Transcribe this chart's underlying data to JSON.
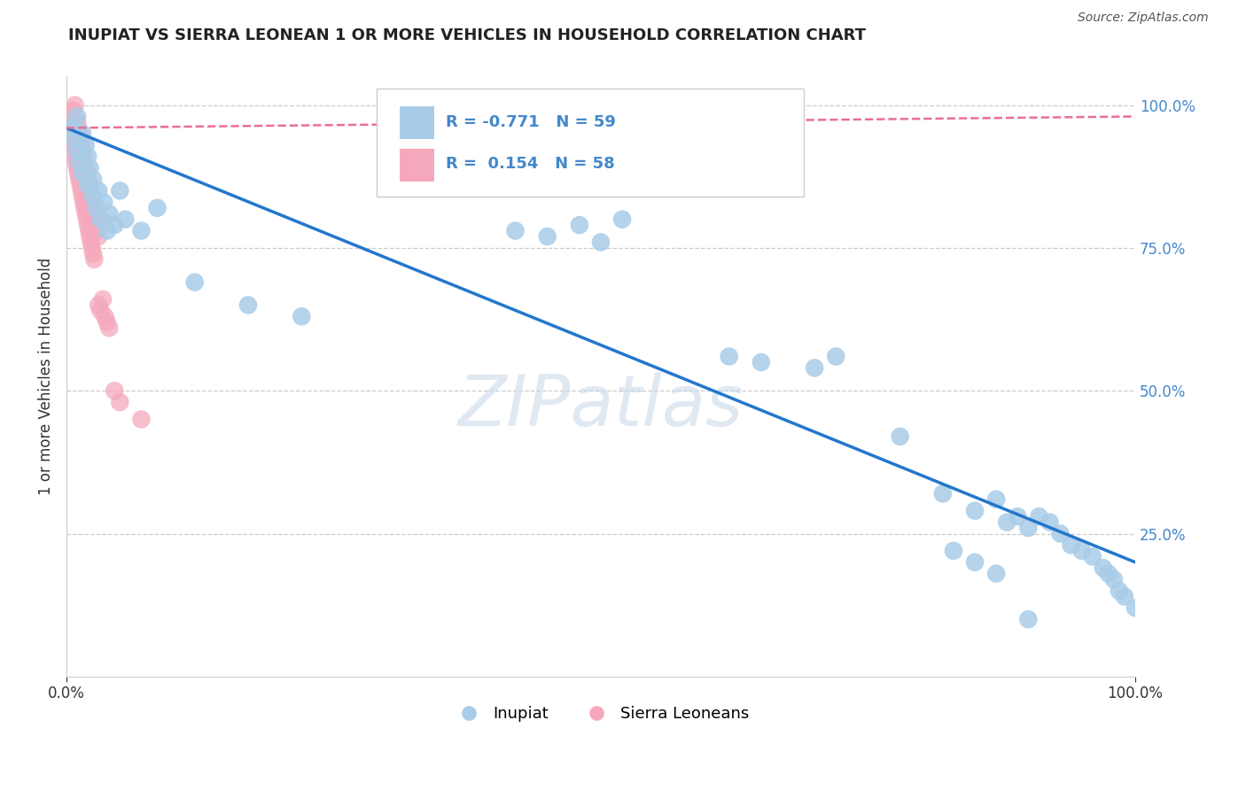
{
  "title": "INUPIAT VS SIERRA LEONEAN 1 OR MORE VEHICLES IN HOUSEHOLD CORRELATION CHART",
  "source": "Source: ZipAtlas.com",
  "ylabel": "1 or more Vehicles in Household",
  "xlabel": "",
  "xlim": [
    0.0,
    1.0
  ],
  "ylim": [
    0.0,
    1.05
  ],
  "inupiat_color": "#a8cce8",
  "sierra_color": "#f5a8bc",
  "line_inupiat_color": "#2277cc",
  "line_sierra_color": "#e87090",
  "R_inupiat": -0.771,
  "N_inupiat": 59,
  "R_sierra": 0.154,
  "N_sierra": 58,
  "background_color": "#ffffff",
  "grid_color": "#cccccc",
  "title_color": "#222222",
  "source_color": "#555555",
  "tick_color": "#4488cc",
  "legend_label_inupiat": "Inupiat",
  "legend_label_sierra": "Sierra Leoneans",
  "inupiat_line_x0": 0.0,
  "inupiat_line_y0": 0.96,
  "inupiat_line_x1": 1.0,
  "inupiat_line_y1": 0.2,
  "sierra_line_x0": 0.0,
  "sierra_line_y0": 0.96,
  "sierra_line_x1": 0.08,
  "sierra_line_y1": 0.98,
  "inupiat_x": [
    0.005,
    0.008,
    0.01,
    0.01,
    0.012,
    0.015,
    0.015,
    0.018,
    0.02,
    0.02,
    0.022,
    0.025,
    0.025,
    0.028,
    0.03,
    0.032,
    0.035,
    0.038,
    0.04,
    0.045,
    0.05,
    0.055,
    0.07,
    0.085,
    0.12,
    0.17,
    0.22,
    0.42,
    0.45,
    0.48,
    0.5,
    0.52,
    0.62,
    0.65,
    0.7,
    0.72,
    0.78,
    0.82,
    0.85,
    0.87,
    0.88,
    0.89,
    0.9,
    0.91,
    0.92,
    0.93,
    0.94,
    0.95,
    0.96,
    0.97,
    0.975,
    0.98,
    0.985,
    0.99,
    1.0,
    0.83,
    0.85,
    0.87,
    0.9
  ],
  "inupiat_y": [
    0.96,
    0.94,
    0.92,
    0.98,
    0.9,
    0.95,
    0.88,
    0.93,
    0.91,
    0.86,
    0.89,
    0.87,
    0.84,
    0.82,
    0.85,
    0.8,
    0.83,
    0.78,
    0.81,
    0.79,
    0.85,
    0.8,
    0.78,
    0.82,
    0.69,
    0.65,
    0.63,
    0.78,
    0.77,
    0.79,
    0.76,
    0.8,
    0.56,
    0.55,
    0.54,
    0.56,
    0.42,
    0.32,
    0.29,
    0.31,
    0.27,
    0.28,
    0.26,
    0.28,
    0.27,
    0.25,
    0.23,
    0.22,
    0.21,
    0.19,
    0.18,
    0.17,
    0.15,
    0.14,
    0.12,
    0.22,
    0.2,
    0.18,
    0.1
  ],
  "sierra_x": [
    0.002,
    0.003,
    0.004,
    0.005,
    0.006,
    0.007,
    0.007,
    0.008,
    0.008,
    0.009,
    0.009,
    0.01,
    0.01,
    0.011,
    0.011,
    0.012,
    0.012,
    0.013,
    0.013,
    0.014,
    0.014,
    0.015,
    0.015,
    0.016,
    0.016,
    0.017,
    0.017,
    0.018,
    0.018,
    0.019,
    0.019,
    0.02,
    0.02,
    0.021,
    0.021,
    0.022,
    0.022,
    0.023,
    0.023,
    0.024,
    0.024,
    0.025,
    0.025,
    0.026,
    0.026,
    0.027,
    0.028,
    0.029,
    0.03,
    0.03,
    0.032,
    0.034,
    0.036,
    0.038,
    0.04,
    0.045,
    0.05,
    0.07
  ],
  "sierra_y": [
    0.98,
    0.97,
    0.96,
    0.95,
    0.99,
    0.94,
    0.93,
    0.92,
    1.0,
    0.91,
    0.9,
    0.97,
    0.89,
    0.96,
    0.88,
    0.95,
    0.87,
    0.94,
    0.86,
    0.93,
    0.85,
    0.92,
    0.84,
    0.91,
    0.83,
    0.9,
    0.82,
    0.89,
    0.81,
    0.88,
    0.8,
    0.87,
    0.79,
    0.86,
    0.78,
    0.85,
    0.77,
    0.84,
    0.76,
    0.83,
    0.75,
    0.82,
    0.74,
    0.81,
    0.73,
    0.8,
    0.79,
    0.78,
    0.77,
    0.65,
    0.64,
    0.66,
    0.63,
    0.62,
    0.61,
    0.5,
    0.48,
    0.45
  ]
}
